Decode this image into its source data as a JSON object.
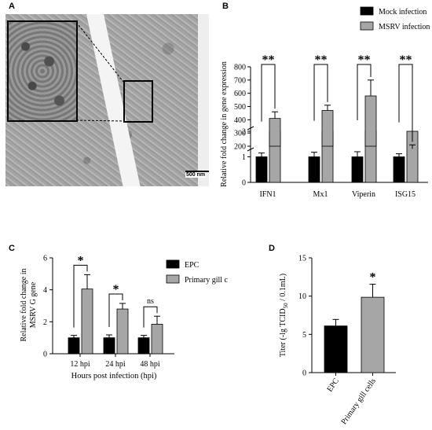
{
  "panels": {
    "a": {
      "letter": "A",
      "scale_bar": "500 nm"
    },
    "b": {
      "letter": "B"
    },
    "c": {
      "letter": "C"
    },
    "d": {
      "letter": "D"
    }
  },
  "chart_data": [
    {
      "id": "B",
      "type": "bar",
      "ylabel": "Relative fold change in gene expression",
      "xlabel": "",
      "categories": [
        "IFN1",
        "Mx1",
        "Viperin",
        "ISG15"
      ],
      "series": [
        {
          "name": "Mock infection",
          "color": "#000000",
          "values": [
            1,
            1,
            1,
            1
          ],
          "errors": [
            0.15,
            0.18,
            0.2,
            0.12
          ]
        },
        {
          "name": "MSRV infection",
          "color": "#a6a6a6",
          "values": [
            410,
            470,
            580,
            180
          ],
          "errors": [
            50,
            40,
            120,
            30
          ]
        }
      ],
      "y_axis": {
        "broken": true,
        "lower_ticks": [
          "0",
          "1",
          "2"
        ],
        "upper_ticks": [
          "200",
          "300",
          "400",
          "500",
          "600",
          "700",
          "800"
        ]
      },
      "significance": [
        "**",
        "**",
        "**",
        "**"
      ],
      "legend_position": "top-right",
      "grid": false
    },
    {
      "id": "C",
      "type": "bar",
      "ylabel": "Relative fold change in MSRV G gene",
      "xlabel": "Hours post infection (hpi)",
      "categories": [
        "12 hpi",
        "24 hpi",
        "48 hpi"
      ],
      "series": [
        {
          "name": "EPC",
          "color": "#000000",
          "values": [
            1,
            1,
            1
          ],
          "errors": [
            0.15,
            0.18,
            0.15
          ]
        },
        {
          "name": "Primary gill cells",
          "color": "#a6a6a6",
          "values": [
            4.05,
            2.8,
            1.85
          ],
          "errors": [
            0.9,
            0.35,
            0.5
          ]
        }
      ],
      "ylim": [
        0,
        6
      ],
      "yticks": [
        "0",
        "2",
        "4",
        "6"
      ],
      "significance": [
        "*",
        "*",
        "ns"
      ],
      "legend_position": "top-right",
      "grid": false
    },
    {
      "id": "D",
      "type": "bar",
      "ylabel_main": "Titer (-lg TCID",
      "ylabel_sub": "50",
      "ylabel_end": " / 0.1mL)",
      "xlabel": "",
      "categories": [
        "EPC",
        "Primary gill cells"
      ],
      "series": [
        {
          "name": "",
          "colors": [
            "#000000",
            "#a6a6a6"
          ],
          "values": [
            6.1,
            9.85
          ],
          "errors": [
            0.85,
            1.7
          ]
        }
      ],
      "ylim": [
        0,
        15
      ],
      "yticks": [
        "0",
        "5",
        "10",
        "15"
      ],
      "significance": [
        "",
        "*"
      ],
      "grid": false
    }
  ]
}
